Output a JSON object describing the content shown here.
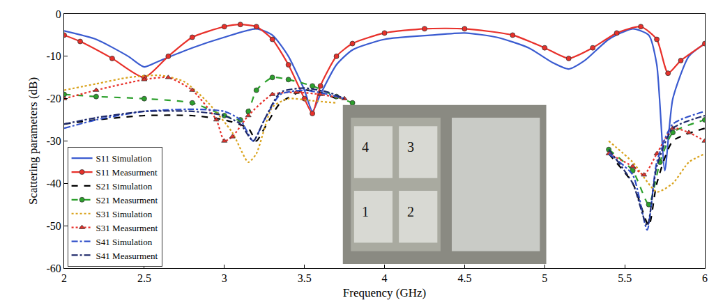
{
  "chart_data": {
    "type": "line",
    "x_label": "Frequency (GHz)",
    "y_label": "Scattering parameters (dB)",
    "xlim": [
      2,
      6
    ],
    "xticks": [
      2,
      2.5,
      3,
      3.5,
      4,
      4.5,
      5,
      5.5,
      6
    ],
    "ylim": [
      -60,
      0
    ],
    "yticks": [
      -60,
      -50,
      -40,
      -30,
      -20,
      -10,
      0
    ],
    "grid": false,
    "legend": "lower left",
    "annotations": [
      "1",
      "2",
      "3",
      "4"
    ],
    "series": [
      {
        "name": "S11 Simulation",
        "color": "#3a5bd0",
        "line_style": "solid",
        "x": [
          2.0,
          2.2,
          2.4,
          2.5,
          2.6,
          2.8,
          3.0,
          3.2,
          3.3,
          3.4,
          3.5,
          3.55,
          3.6,
          3.7,
          3.8,
          4.0,
          4.3,
          4.5,
          4.7,
          4.9,
          5.05,
          5.15,
          5.25,
          5.4,
          5.55,
          5.65,
          5.7,
          5.75,
          5.8,
          5.9,
          6.0
        ],
        "values": [
          -4,
          -6,
          -10,
          -12.5,
          -11,
          -8,
          -5.5,
          -3.5,
          -5,
          -10,
          -18,
          -23,
          -19,
          -12,
          -8.5,
          -6,
          -5,
          -4.5,
          -5.5,
          -8,
          -11.5,
          -13,
          -11,
          -6,
          -3.5,
          -5,
          -12,
          -37,
          -20,
          -10,
          -7
        ]
      },
      {
        "name": "S11 Measurment",
        "color": "#e8302a",
        "line_style": "solid",
        "marker": "circle",
        "x": [
          2.0,
          2.1,
          2.3,
          2.5,
          2.65,
          2.8,
          3.0,
          3.1,
          3.2,
          3.3,
          3.4,
          3.5,
          3.55,
          3.6,
          3.7,
          3.8,
          4.0,
          4.25,
          4.5,
          4.8,
          5.0,
          5.15,
          5.3,
          5.45,
          5.6,
          5.7,
          5.77,
          5.85,
          6.0
        ],
        "values": [
          -5,
          -6.5,
          -10.5,
          -15,
          -10,
          -5.5,
          -3,
          -2.5,
          -3,
          -6,
          -12,
          -20,
          -23.5,
          -17,
          -10,
          -7,
          -4.5,
          -3.5,
          -3.5,
          -5,
          -8,
          -10.5,
          -8,
          -4.5,
          -3,
          -6,
          -14,
          -11,
          -7
        ]
      },
      {
        "name": "S21 Simulation",
        "color": "#000000",
        "line_style": "dash",
        "x": [
          2.0,
          2.2,
          2.5,
          2.8,
          3.0,
          3.15,
          3.2,
          3.25,
          3.35,
          3.5,
          3.6,
          3.7,
          4.5,
          5.4,
          5.55,
          5.65,
          5.7,
          5.8,
          6.0
        ],
        "values": [
          -26,
          -25,
          -24,
          -24,
          -25,
          -27,
          -30,
          -27,
          -21,
          -18,
          -18.5,
          -20,
          null,
          -33,
          -40,
          -50,
          -40,
          -30,
          -27
        ]
      },
      {
        "name": "S21 Measurment",
        "color": "#2ca02c",
        "line_style": "dash",
        "marker": "circle",
        "x": [
          2.0,
          2.2,
          2.5,
          2.8,
          3.0,
          3.1,
          3.15,
          3.2,
          3.3,
          3.4,
          3.55,
          3.7,
          3.8,
          4.5,
          5.4,
          5.55,
          5.65,
          5.72,
          5.8,
          6.0
        ],
        "values": [
          -19,
          -19.5,
          -20,
          -21,
          -24,
          -25,
          -23,
          -18,
          -15,
          -15.5,
          -17,
          -19.5,
          -21,
          null,
          -32,
          -37,
          -45,
          -35,
          -28,
          -25
        ]
      },
      {
        "name": "S31 Simulation",
        "color": "#d9a21b",
        "line_style": "dot",
        "x": [
          2.0,
          2.2,
          2.4,
          2.6,
          2.75,
          2.9,
          3.05,
          3.15,
          3.2,
          3.3,
          3.4,
          3.55,
          3.7,
          4.5,
          5.4,
          5.55,
          5.7,
          5.8,
          5.9,
          6.0
        ],
        "values": [
          -18,
          -16.5,
          -15,
          -14.5,
          -16,
          -21,
          -28,
          -35,
          -33,
          -22,
          -20,
          -20.5,
          -21,
          null,
          -30,
          -35,
          -42,
          -40,
          -35,
          -33
        ]
      },
      {
        "name": "S31 Measurment",
        "color": "#e8302a",
        "line_style": "dot",
        "marker": "triangle-up",
        "x": [
          2.0,
          2.2,
          2.5,
          2.65,
          2.8,
          2.95,
          3.0,
          3.05,
          3.15,
          3.3,
          3.45,
          3.6,
          3.75,
          4.5,
          5.4,
          5.55,
          5.62,
          5.7,
          5.8,
          5.9,
          6.0
        ],
        "values": [
          -20,
          -18,
          -15.5,
          -15,
          -18,
          -25,
          -30,
          -29,
          -24,
          -19,
          -18.5,
          -19,
          -20,
          null,
          -33,
          -36,
          -38,
          -33,
          -27,
          -28,
          -30
        ]
      },
      {
        "name": "S41 Simulation",
        "color": "#2f4fc9",
        "line_style": "dashdot",
        "x": [
          2.0,
          2.2,
          2.5,
          2.8,
          3.0,
          3.1,
          3.18,
          3.25,
          3.35,
          3.5,
          3.65,
          3.75,
          4.5,
          5.4,
          5.55,
          5.64,
          5.7,
          5.8,
          6.0
        ],
        "values": [
          -27,
          -25,
          -23,
          -22.5,
          -23,
          -25,
          -30,
          -25,
          -19,
          -18,
          -19,
          -20,
          null,
          -33,
          -38,
          -51,
          -35,
          -26,
          -23
        ]
      },
      {
        "name": "S41 Measurment",
        "color": "#1f2a6b",
        "line_style": "dashdot",
        "x": [
          2.0,
          2.2,
          2.5,
          2.8,
          3.0,
          3.1,
          3.18,
          3.25,
          3.35,
          3.5,
          3.65,
          3.75,
          4.5,
          5.4,
          5.55,
          5.64,
          5.7,
          5.8,
          6.0
        ],
        "values": [
          -26,
          -24.5,
          -23,
          -23,
          -24,
          -26,
          -30,
          -25,
          -18.5,
          -17.5,
          -18.5,
          -20,
          null,
          -32,
          -40,
          -50,
          -36,
          -27,
          -24
        ]
      }
    ]
  }
}
